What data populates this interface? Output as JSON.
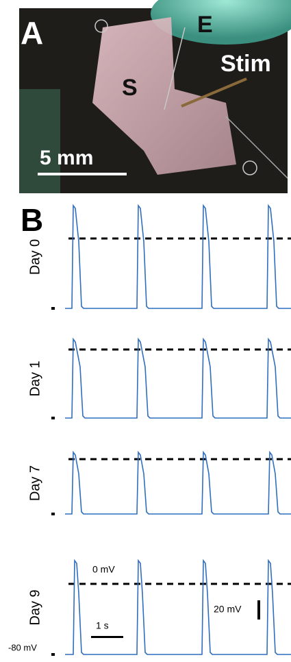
{
  "panel_a": {
    "label": "A",
    "electrode_label": "E",
    "stim_label": "Stim",
    "sample_label": "S",
    "scale_label": "5 mm"
  },
  "panel_b": {
    "label": "B",
    "rows": [
      "Day 0",
      "Day 1",
      "Day 7",
      "Day 9"
    ],
    "zero_label": "0 mV",
    "amplitude_scale": "20 mV",
    "time_scale": "1 s",
    "rest_label": "-80 mV"
  }
}
